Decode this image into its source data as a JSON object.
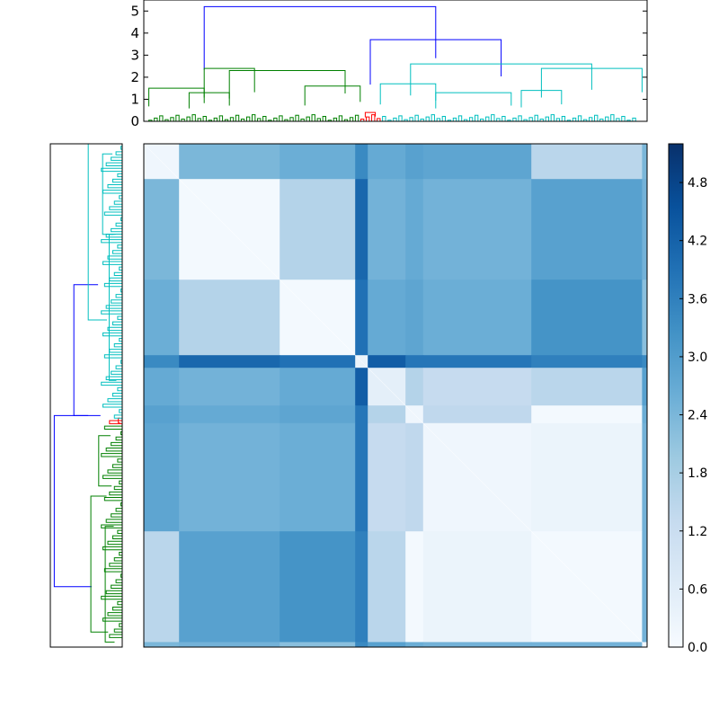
{
  "chart_data": {
    "type": "heatmap",
    "title": "",
    "xlabel": "",
    "ylabel": "",
    "description_free": true,
    "colormap": "Blues",
    "colors": {
      "blue_link": "#0000ff",
      "green_cluster": "#008000",
      "cyan_cluster": "#00bfbf",
      "red_cluster": "#ff0000",
      "cmap_low": "#f7fbff",
      "cmap_mid": "#6baed6",
      "cmap_high": "#08306b"
    },
    "top_dendrogram": {
      "ylim": [
        0,
        5.5
      ],
      "yticks": [
        "0",
        "1",
        "2",
        "3",
        "4",
        "5"
      ],
      "ytick_values": [
        0,
        1,
        2,
        3,
        4,
        5
      ],
      "links": [
        {
          "left": 0.12,
          "right": 0.58,
          "height": 5.2,
          "color": "blue"
        },
        {
          "left": 0.45,
          "right": 0.71,
          "height": 3.7,
          "color": "blue"
        },
        {
          "left": 0.12,
          "right": 0.22,
          "height": 2.4,
          "color": "green"
        },
        {
          "left": 0.01,
          "right": 0.12,
          "height": 1.5,
          "color": "green"
        },
        {
          "left": 0.09,
          "right": 0.17,
          "height": 1.3,
          "color": "green"
        },
        {
          "left": 0.17,
          "right": 0.4,
          "height": 2.3,
          "color": "green"
        },
        {
          "left": 0.32,
          "right": 0.43,
          "height": 1.6,
          "color": "green"
        },
        {
          "left": 0.53,
          "right": 0.89,
          "height": 2.6,
          "color": "cyan"
        },
        {
          "left": 0.79,
          "right": 0.99,
          "height": 2.4,
          "color": "cyan"
        },
        {
          "left": 0.47,
          "right": 0.58,
          "height": 1.7,
          "color": "cyan"
        },
        {
          "left": 0.58,
          "right": 0.73,
          "height": 1.3,
          "color": "cyan"
        },
        {
          "left": 0.75,
          "right": 0.83,
          "height": 1.4,
          "color": "cyan"
        },
        {
          "left": 0.44,
          "right": 0.46,
          "height": 0.4,
          "color": "red"
        }
      ]
    },
    "left_dendrogram": {
      "note": "same tree as top dendrogram rotated",
      "links": [
        {
          "top": 0.54,
          "bottom": 0.88,
          "height": 5.2,
          "color": "blue"
        },
        {
          "top": 0.28,
          "bottom": 0.54,
          "height": 3.7,
          "color": "blue"
        },
        {
          "top": 0.0,
          "bottom": 0.35,
          "height": 2.6,
          "color": "cyan"
        },
        {
          "top": 0.7,
          "bottom": 0.97,
          "height": 2.4,
          "color": "green"
        },
        {
          "top": 0.02,
          "bottom": 0.18,
          "height": 1.5,
          "color": "cyan"
        },
        {
          "top": 0.18,
          "bottom": 0.47,
          "height": 1.0,
          "color": "cyan"
        },
        {
          "top": 0.58,
          "bottom": 0.68,
          "height": 1.8,
          "color": "green"
        },
        {
          "top": 0.76,
          "bottom": 0.99,
          "height": 1.3,
          "color": "green"
        },
        {
          "top": 0.545,
          "bottom": 0.555,
          "height": 0.3,
          "color": "red"
        }
      ]
    },
    "heatmap": {
      "value_range": [
        0.0,
        5.2
      ],
      "block_boundaries": [
        0,
        0.07,
        0.27,
        0.42,
        0.445,
        0.52,
        0.555,
        0.77,
        0.99,
        1.0
      ],
      "block_matrix": [
        [
          0.2,
          2.4,
          2.6,
          3.4,
          2.7,
          2.9,
          2.8,
          1.5,
          2.4
        ],
        [
          2.4,
          0.1,
          1.6,
          4.1,
          2.5,
          2.7,
          2.5,
          2.9,
          2.5
        ],
        [
          2.6,
          1.6,
          0.1,
          3.9,
          2.7,
          2.8,
          2.6,
          3.2,
          2.2
        ],
        [
          3.4,
          4.1,
          3.9,
          0.3,
          4.3,
          3.8,
          3.8,
          3.6,
          3.4
        ],
        [
          2.7,
          2.5,
          2.7,
          4.3,
          0.5,
          1.6,
          1.3,
          1.5,
          2.9
        ],
        [
          2.9,
          2.7,
          2.8,
          3.8,
          1.6,
          0.2,
          1.4,
          0.1,
          2.6
        ],
        [
          2.8,
          2.5,
          2.6,
          3.8,
          1.3,
          1.4,
          0.2,
          0.3,
          2.5
        ],
        [
          1.5,
          2.9,
          3.2,
          3.6,
          1.5,
          0.1,
          0.3,
          0.1,
          2.5
        ],
        [
          2.4,
          2.5,
          2.2,
          3.4,
          2.9,
          2.6,
          2.5,
          2.5,
          0.2
        ]
      ]
    },
    "colorbar": {
      "ticks": [
        "0.0",
        "0.6",
        "1.2",
        "1.8",
        "2.4",
        "3.0",
        "3.6",
        "4.2",
        "4.8"
      ],
      "tick_values": [
        0.0,
        0.6,
        1.2,
        1.8,
        2.4,
        3.0,
        3.6,
        4.2,
        4.8
      ],
      "vmin": 0.0,
      "vmax": 5.2
    }
  }
}
